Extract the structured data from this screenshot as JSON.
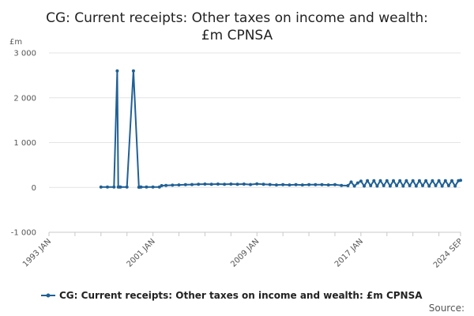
{
  "chart_data": {
    "type": "line",
    "title_line1": "CG: Current receipts: Other taxes on income and wealth:",
    "title_line2": "£m CPNSA",
    "ylabel": "£m",
    "xlabel": "",
    "ylim": [
      -1000,
      3000
    ],
    "yticks": [
      {
        "value": 3000,
        "label": "3 000"
      },
      {
        "value": 2000,
        "label": "2 000"
      },
      {
        "value": 1000,
        "label": "1 000"
      },
      {
        "value": 0,
        "label": "0"
      },
      {
        "value": -1000,
        "label": "-1 000"
      }
    ],
    "xlim": [
      "1993-01",
      "2024-09"
    ],
    "xticks": [
      {
        "value": "1993-01",
        "label": "1993 JAN"
      },
      {
        "value": "2001-01",
        "label": "2001 JAN"
      },
      {
        "value": "2009-01",
        "label": "2009 JAN"
      },
      {
        "value": "2017-01",
        "label": "2017 JAN"
      },
      {
        "value": "2024-09",
        "label": "2024 SEP"
      }
    ],
    "grid": true,
    "legend_position": "bottom",
    "series": [
      {
        "name": "CG: Current receipts: Other taxes on income and wealth: £m CPNSA",
        "color": "#206095",
        "x": [
          "1997-01",
          "1997-07",
          "1998-01",
          "1998-04",
          "1998-05",
          "1998-06",
          "1998-07",
          "1999-01",
          "1999-07",
          "1999-12",
          "2000-01",
          "2000-02",
          "2000-07",
          "2001-01",
          "2001-07",
          "2001-09",
          "2002-01",
          "2002-07",
          "2003-01",
          "2003-07",
          "2004-01",
          "2004-07",
          "2005-01",
          "2005-07",
          "2006-01",
          "2006-07",
          "2007-01",
          "2007-07",
          "2008-01",
          "2008-07",
          "2009-01",
          "2009-07",
          "2010-01",
          "2010-07",
          "2011-01",
          "2011-07",
          "2012-01",
          "2012-07",
          "2013-01",
          "2013-07",
          "2014-01",
          "2014-07",
          "2015-01",
          "2015-07",
          "2016-01",
          "2016-04",
          "2016-07",
          "2016-10",
          "2017-01",
          "2017-04",
          "2017-07",
          "2017-10",
          "2018-01",
          "2018-04",
          "2018-07",
          "2018-10",
          "2019-01",
          "2019-04",
          "2019-07",
          "2019-10",
          "2020-01",
          "2020-04",
          "2020-07",
          "2020-10",
          "2021-01",
          "2021-04",
          "2021-07",
          "2021-10",
          "2022-01",
          "2022-04",
          "2022-07",
          "2022-10",
          "2023-01",
          "2023-04",
          "2023-07",
          "2023-10",
          "2024-01",
          "2024-04",
          "2024-07",
          "2024-09"
        ],
        "values": [
          10,
          10,
          10,
          2600,
          10,
          10,
          10,
          10,
          2600,
          5,
          10,
          10,
          10,
          10,
          10,
          40,
          45,
          50,
          55,
          60,
          65,
          70,
          75,
          70,
          75,
          70,
          75,
          70,
          75,
          65,
          80,
          70,
          65,
          55,
          60,
          55,
          60,
          55,
          60,
          60,
          60,
          55,
          60,
          45,
          40,
          120,
          30,
          100,
          140,
          30,
          150,
          40,
          150,
          30,
          150,
          40,
          150,
          30,
          150,
          40,
          150,
          30,
          150,
          40,
          150,
          30,
          150,
          40,
          150,
          30,
          150,
          40,
          150,
          30,
          150,
          40,
          150,
          30,
          150,
          160
        ]
      }
    ]
  },
  "source_label": "Source:"
}
